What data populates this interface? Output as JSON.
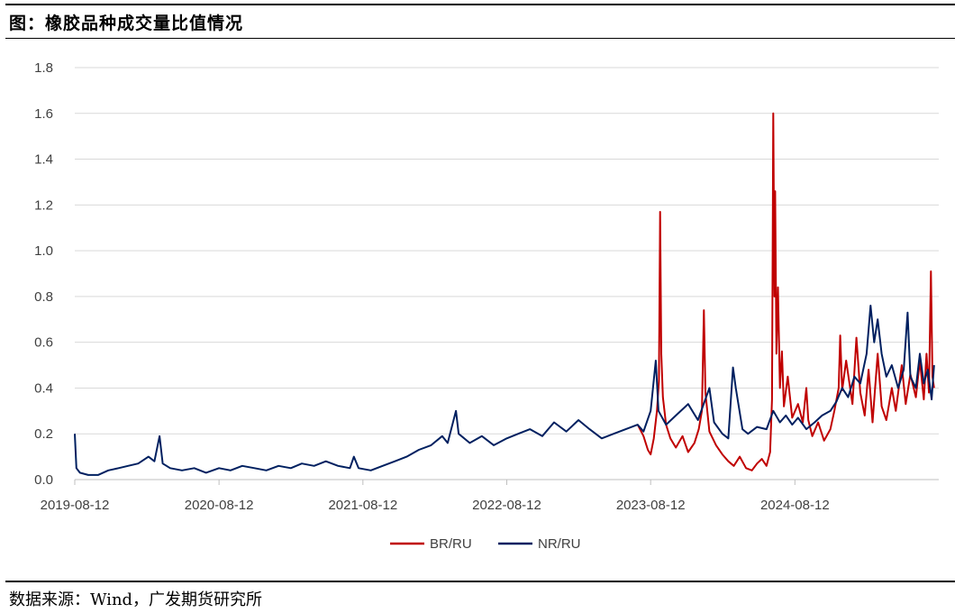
{
  "header": {
    "title": "图：橡胶品种成交量比值情况"
  },
  "footer": {
    "source": "数据来源：Wind，广发期货研究所"
  },
  "chart_data": {
    "type": "line",
    "title": "图：橡胶品种成交量比值情况",
    "xlabel": "",
    "ylabel": "",
    "x_tick_labels": [
      "2019-08-12",
      "2020-08-12",
      "2021-08-12",
      "2022-08-12",
      "2023-08-12",
      "2024-08-12"
    ],
    "y_tick_labels": [
      "0.0",
      "0.2",
      "0.4",
      "0.6",
      "0.8",
      "1.0",
      "1.2",
      "1.4",
      "1.6",
      "1.8"
    ],
    "ylim": [
      0,
      1.8
    ],
    "xlim": [
      "2019-08-12",
      "2025-08-12"
    ],
    "grid": "horizontal",
    "legend_position": "bottom-center",
    "series": [
      {
        "name": "BR/RU",
        "color": "#C00000",
        "points": [
          [
            "2023-07-10",
            0.24
          ],
          [
            "2023-07-25",
            0.19
          ],
          [
            "2023-08-05",
            0.13
          ],
          [
            "2023-08-12",
            0.11
          ],
          [
            "2023-08-20",
            0.18
          ],
          [
            "2023-08-28",
            0.3
          ],
          [
            "2023-09-02",
            0.43
          ],
          [
            "2023-09-05",
            1.17
          ],
          [
            "2023-09-08",
            0.55
          ],
          [
            "2023-09-12",
            0.36
          ],
          [
            "2023-09-20",
            0.24
          ],
          [
            "2023-10-01",
            0.18
          ],
          [
            "2023-10-15",
            0.14
          ],
          [
            "2023-11-01",
            0.19
          ],
          [
            "2023-11-15",
            0.12
          ],
          [
            "2023-12-01",
            0.16
          ],
          [
            "2023-12-12",
            0.22
          ],
          [
            "2023-12-20",
            0.3
          ],
          [
            "2023-12-25",
            0.74
          ],
          [
            "2023-12-29",
            0.38
          ],
          [
            "2024-01-08",
            0.21
          ],
          [
            "2024-01-25",
            0.15
          ],
          [
            "2024-02-10",
            0.11
          ],
          [
            "2024-02-25",
            0.08
          ],
          [
            "2024-03-10",
            0.06
          ],
          [
            "2024-03-25",
            0.1
          ],
          [
            "2024-04-10",
            0.05
          ],
          [
            "2024-04-25",
            0.04
          ],
          [
            "2024-05-08",
            0.07
          ],
          [
            "2024-05-20",
            0.09
          ],
          [
            "2024-06-01",
            0.06
          ],
          [
            "2024-06-10",
            0.12
          ],
          [
            "2024-06-15",
            0.35
          ],
          [
            "2024-06-18",
            1.6
          ],
          [
            "2024-06-21",
            0.8
          ],
          [
            "2024-06-23",
            1.26
          ],
          [
            "2024-06-26",
            0.55
          ],
          [
            "2024-06-30",
            0.84
          ],
          [
            "2024-07-05",
            0.4
          ],
          [
            "2024-07-10",
            0.56
          ],
          [
            "2024-07-15",
            0.32
          ],
          [
            "2024-07-25",
            0.45
          ],
          [
            "2024-08-05",
            0.27
          ],
          [
            "2024-08-20",
            0.33
          ],
          [
            "2024-09-01",
            0.25
          ],
          [
            "2024-09-10",
            0.4
          ],
          [
            "2024-09-15",
            0.26
          ],
          [
            "2024-09-25",
            0.19
          ],
          [
            "2024-10-10",
            0.25
          ],
          [
            "2024-10-25",
            0.17
          ],
          [
            "2024-11-10",
            0.22
          ],
          [
            "2024-11-20",
            0.3
          ],
          [
            "2024-12-01",
            0.4
          ],
          [
            "2024-12-05",
            0.63
          ],
          [
            "2024-12-10",
            0.39
          ],
          [
            "2024-12-20",
            0.52
          ],
          [
            "2025-01-05",
            0.33
          ],
          [
            "2025-01-15",
            0.62
          ],
          [
            "2025-01-25",
            0.38
          ],
          [
            "2025-02-05",
            0.28
          ],
          [
            "2025-02-15",
            0.48
          ],
          [
            "2025-02-25",
            0.25
          ],
          [
            "2025-03-10",
            0.55
          ],
          [
            "2025-03-20",
            0.32
          ],
          [
            "2025-04-01",
            0.26
          ],
          [
            "2025-04-15",
            0.4
          ],
          [
            "2025-04-25",
            0.3
          ],
          [
            "2025-05-10",
            0.5
          ],
          [
            "2025-05-20",
            0.33
          ],
          [
            "2025-06-01",
            0.46
          ],
          [
            "2025-06-15",
            0.36
          ],
          [
            "2025-06-25",
            0.52
          ],
          [
            "2025-07-05",
            0.35
          ],
          [
            "2025-07-12",
            0.55
          ],
          [
            "2025-07-18",
            0.38
          ],
          [
            "2025-07-23",
            0.91
          ],
          [
            "2025-07-27",
            0.45
          ],
          [
            "2025-07-31",
            0.4
          ]
        ]
      },
      {
        "name": "NR/RU",
        "color": "#002060",
        "points": [
          [
            "2019-08-12",
            0.2
          ],
          [
            "2019-08-16",
            0.05
          ],
          [
            "2019-08-25",
            0.03
          ],
          [
            "2019-09-15",
            0.02
          ],
          [
            "2019-10-10",
            0.02
          ],
          [
            "2019-11-05",
            0.04
          ],
          [
            "2019-12-01",
            0.05
          ],
          [
            "2019-12-25",
            0.06
          ],
          [
            "2020-01-20",
            0.07
          ],
          [
            "2020-02-15",
            0.1
          ],
          [
            "2020-03-01",
            0.08
          ],
          [
            "2020-03-14",
            0.19
          ],
          [
            "2020-03-22",
            0.07
          ],
          [
            "2020-04-10",
            0.05
          ],
          [
            "2020-05-10",
            0.04
          ],
          [
            "2020-06-10",
            0.05
          ],
          [
            "2020-07-10",
            0.03
          ],
          [
            "2020-08-12",
            0.05
          ],
          [
            "2020-09-10",
            0.04
          ],
          [
            "2020-10-10",
            0.06
          ],
          [
            "2020-11-10",
            0.05
          ],
          [
            "2020-12-10",
            0.04
          ],
          [
            "2021-01-10",
            0.06
          ],
          [
            "2021-02-10",
            0.05
          ],
          [
            "2021-03-10",
            0.07
          ],
          [
            "2021-04-10",
            0.06
          ],
          [
            "2021-05-10",
            0.08
          ],
          [
            "2021-06-10",
            0.06
          ],
          [
            "2021-07-10",
            0.05
          ],
          [
            "2021-07-20",
            0.1
          ],
          [
            "2021-08-01",
            0.05
          ],
          [
            "2021-09-01",
            0.04
          ],
          [
            "2021-10-01",
            0.06
          ],
          [
            "2021-11-01",
            0.08
          ],
          [
            "2021-12-01",
            0.1
          ],
          [
            "2022-01-01",
            0.13
          ],
          [
            "2022-02-01",
            0.15
          ],
          [
            "2022-03-01",
            0.19
          ],
          [
            "2022-03-15",
            0.16
          ],
          [
            "2022-04-05",
            0.3
          ],
          [
            "2022-04-12",
            0.2
          ],
          [
            "2022-05-10",
            0.16
          ],
          [
            "2022-06-10",
            0.19
          ],
          [
            "2022-07-10",
            0.15
          ],
          [
            "2022-08-12",
            0.18
          ],
          [
            "2022-09-10",
            0.2
          ],
          [
            "2022-10-10",
            0.22
          ],
          [
            "2022-11-10",
            0.19
          ],
          [
            "2022-12-10",
            0.25
          ],
          [
            "2023-01-10",
            0.21
          ],
          [
            "2023-02-10",
            0.26
          ],
          [
            "2023-03-10",
            0.22
          ],
          [
            "2023-04-10",
            0.18
          ],
          [
            "2023-05-10",
            0.2
          ],
          [
            "2023-06-10",
            0.22
          ],
          [
            "2023-07-10",
            0.24
          ],
          [
            "2023-07-25",
            0.21
          ],
          [
            "2023-08-12",
            0.3
          ],
          [
            "2023-08-25",
            0.52
          ],
          [
            "2023-09-01",
            0.3
          ],
          [
            "2023-09-20",
            0.24
          ],
          [
            "2023-10-15",
            0.28
          ],
          [
            "2023-11-15",
            0.33
          ],
          [
            "2023-12-10",
            0.26
          ],
          [
            "2024-01-08",
            0.4
          ],
          [
            "2024-01-20",
            0.25
          ],
          [
            "2024-02-10",
            0.2
          ],
          [
            "2024-02-25",
            0.18
          ],
          [
            "2024-03-08",
            0.49
          ],
          [
            "2024-03-15",
            0.4
          ],
          [
            "2024-04-01",
            0.22
          ],
          [
            "2024-04-15",
            0.2
          ],
          [
            "2024-05-08",
            0.23
          ],
          [
            "2024-06-01",
            0.22
          ],
          [
            "2024-06-18",
            0.3
          ],
          [
            "2024-07-05",
            0.25
          ],
          [
            "2024-07-20",
            0.28
          ],
          [
            "2024-08-05",
            0.24
          ],
          [
            "2024-08-20",
            0.27
          ],
          [
            "2024-09-10",
            0.22
          ],
          [
            "2024-10-01",
            0.25
          ],
          [
            "2024-10-20",
            0.28
          ],
          [
            "2024-11-10",
            0.3
          ],
          [
            "2024-11-25",
            0.34
          ],
          [
            "2024-12-10",
            0.4
          ],
          [
            "2024-12-25",
            0.36
          ],
          [
            "2025-01-10",
            0.45
          ],
          [
            "2025-01-25",
            0.42
          ],
          [
            "2025-02-10",
            0.55
          ],
          [
            "2025-02-20",
            0.76
          ],
          [
            "2025-03-01",
            0.6
          ],
          [
            "2025-03-10",
            0.7
          ],
          [
            "2025-03-20",
            0.55
          ],
          [
            "2025-04-01",
            0.45
          ],
          [
            "2025-04-15",
            0.5
          ],
          [
            "2025-05-01",
            0.4
          ],
          [
            "2025-05-15",
            0.48
          ],
          [
            "2025-05-25",
            0.73
          ],
          [
            "2025-06-01",
            0.45
          ],
          [
            "2025-06-15",
            0.4
          ],
          [
            "2025-06-25",
            0.55
          ],
          [
            "2025-07-05",
            0.42
          ],
          [
            "2025-07-15",
            0.48
          ],
          [
            "2025-07-25",
            0.35
          ],
          [
            "2025-07-31",
            0.5
          ]
        ]
      }
    ]
  }
}
